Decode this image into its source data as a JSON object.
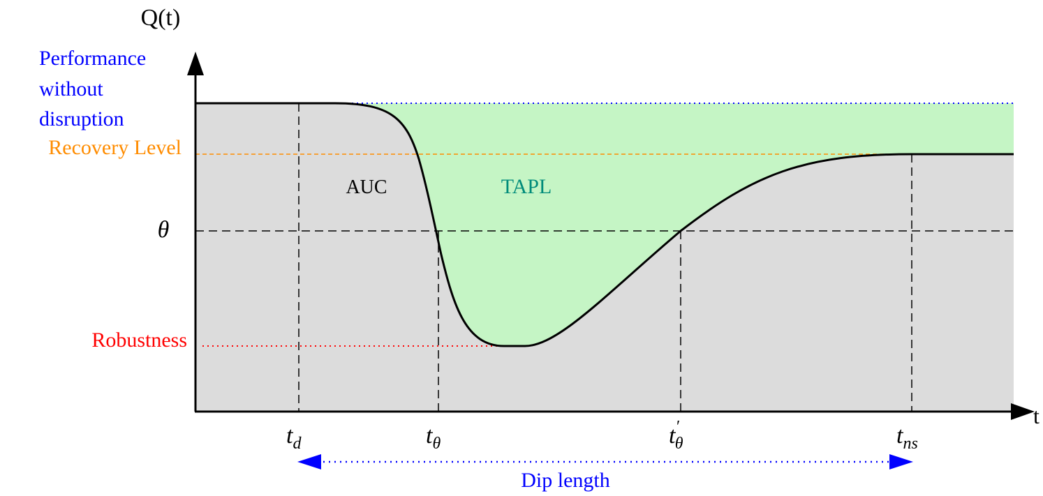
{
  "axes": {
    "y_label": "Q(t)",
    "x_label": "t"
  },
  "levels": {
    "performance": {
      "label_lines": [
        "Performance",
        "without",
        "disruption"
      ],
      "color": "#0000ff"
    },
    "recovery": {
      "label": "Recovery Level",
      "color": "#ff8c00"
    },
    "threshold": {
      "label": "θ",
      "color": "#000000"
    },
    "robustness": {
      "label": "Robustness",
      "color": "#ff0000"
    }
  },
  "regions": {
    "auc": {
      "label": "AUC",
      "color": "#dcdcdc",
      "text_color": "#000000"
    },
    "tapl": {
      "label": "TAPL",
      "color": "#c5f5c5",
      "text_color": "#008b7a"
    }
  },
  "time_marks": [
    {
      "base": "t",
      "sub": "d",
      "prime": ""
    },
    {
      "base": "t",
      "sub": "θ",
      "prime": ""
    },
    {
      "base": "t",
      "sub": "θ",
      "prime": "′"
    },
    {
      "base": "t",
      "sub": "ns",
      "prime": ""
    }
  ],
  "dip_length": {
    "label": "Dip length",
    "color": "#0000ff"
  }
}
